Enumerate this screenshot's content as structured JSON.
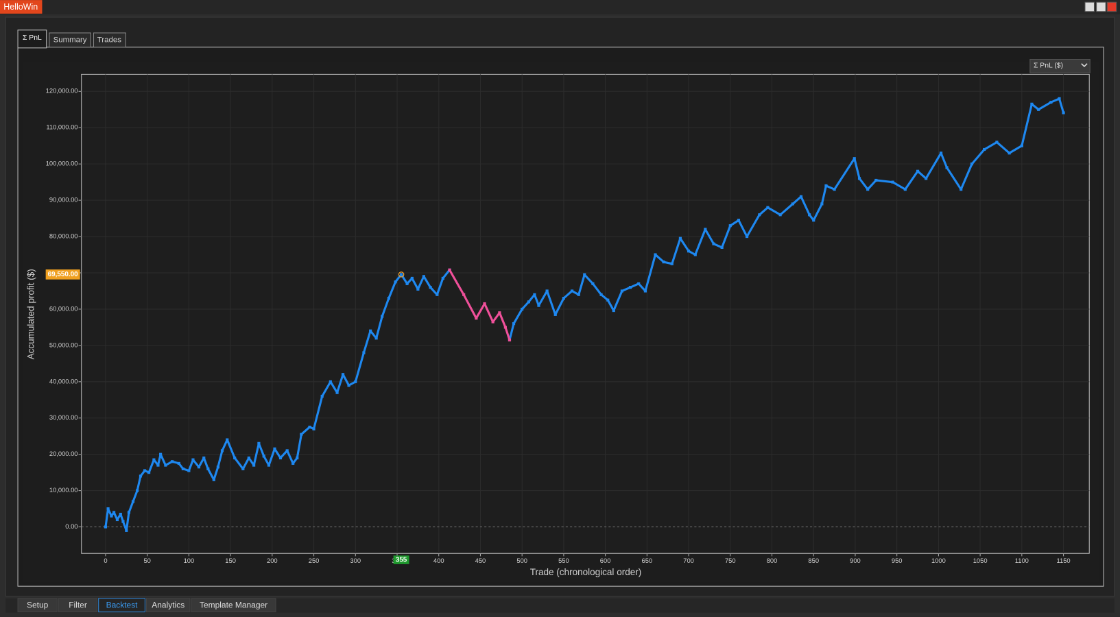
{
  "window": {
    "title": "HelloWin"
  },
  "tabs": [
    "Σ PnL",
    "Summary",
    "Trades"
  ],
  "dropdown": "Σ PnL ($)",
  "bottom_tabs": [
    "Setup",
    "Filter",
    "Backtest",
    "Analytics",
    "Template Manager"
  ],
  "active_bottom_tab": 2,
  "chart_data": {
    "type": "line",
    "xlabel": "Trade (chronological order)",
    "ylabel": "Accumulated profit ($)",
    "xlim": [
      -29,
      1181
    ],
    "ylim": [
      -7300,
      124700
    ],
    "grid": true,
    "xticks": [
      0,
      50,
      100,
      150,
      200,
      250,
      300,
      350,
      400,
      450,
      500,
      550,
      600,
      650,
      700,
      750,
      800,
      850,
      900,
      950,
      1000,
      1050,
      1100,
      1150
    ],
    "yticks": [
      {
        "value": 0,
        "label": "0.00"
      },
      {
        "value": 10000,
        "label": "10,000.00"
      },
      {
        "value": 20000,
        "label": "20,000.00"
      },
      {
        "value": 30000,
        "label": "30,000.00"
      },
      {
        "value": 40000,
        "label": "40,000.00"
      },
      {
        "value": 50000,
        "label": "50,000.00"
      },
      {
        "value": 60000,
        "label": "60,000.00"
      },
      {
        "value": 70000,
        "label": "70,000.00"
      },
      {
        "value": 80000,
        "label": "80,000.00"
      },
      {
        "value": 90000,
        "label": "90,000.00"
      },
      {
        "value": 100000,
        "label": "100,000.00"
      },
      {
        "value": 110000,
        "label": "110,000.00"
      },
      {
        "value": 120000,
        "label": "120,000.00"
      }
    ],
    "series": [
      {
        "color": "#1e88f0",
        "x": [
          0,
          3,
          7,
          10,
          14,
          18,
          21,
          25,
          28,
          33,
          38,
          42,
          47,
          52,
          58,
          63,
          66,
          72,
          80,
          88,
          93,
          100,
          105,
          112,
          118,
          123,
          130,
          135,
          140,
          146,
          155,
          165,
          172,
          178,
          184,
          190,
          196,
          203,
          210,
          218,
          225,
          230,
          235,
          245,
          250,
          260,
          270,
          278,
          285,
          292,
          300,
          310,
          318,
          325,
          332,
          340,
          348,
          355,
          362,
          368,
          375,
          382,
          390,
          398,
          405,
          413,
          430,
          445,
          455,
          465,
          473,
          480,
          485,
          490,
          500,
          508,
          515,
          520,
          530,
          540,
          550,
          560,
          568,
          575,
          585,
          595,
          603,
          610,
          620,
          630,
          640,
          648,
          660,
          670,
          680,
          690,
          700,
          708,
          720,
          730,
          740,
          750,
          760,
          770,
          785,
          795,
          810,
          825,
          835,
          845,
          850,
          860,
          865,
          875,
          899,
          905,
          915,
          925,
          945,
          960,
          975,
          985,
          1003,
          1010,
          1027,
          1040,
          1055,
          1070,
          1085,
          1100,
          1112,
          1120,
          1135,
          1145,
          1150
        ],
        "values": [
          0,
          5000,
          3000,
          4000,
          2000,
          3500,
          1500,
          -1000,
          4000,
          7000,
          10000,
          14000,
          15500,
          15000,
          18500,
          17000,
          20000,
          17000,
          18000,
          17500,
          16000,
          15500,
          18500,
          16500,
          19000,
          16000,
          13000,
          16500,
          21000,
          24000,
          19000,
          16000,
          19000,
          17000,
          23000,
          19500,
          17000,
          21500,
          19000,
          21000,
          17500,
          19000,
          25500,
          27500,
          27000,
          36000,
          40000,
          37000,
          42000,
          39000,
          40000,
          48000,
          54000,
          52000,
          58000,
          63000,
          67500,
          69550,
          67000,
          68500,
          65500,
          69000,
          66000,
          64000,
          68500,
          70800,
          null,
          null,
          null,
          null,
          null,
          null,
          51500,
          56000,
          60000,
          62000,
          64000,
          61000,
          65000,
          58500,
          63000,
          65000,
          64000,
          69500,
          67000,
          64000,
          62500,
          59600,
          65000,
          66000,
          67000,
          65000,
          75000,
          73000,
          72500,
          79500,
          76000,
          75000,
          82000,
          78000,
          77000,
          83000,
          84500,
          80000,
          86000,
          88000,
          86000,
          89000,
          91000,
          86000,
          84500,
          89000,
          94000,
          93000,
          101500,
          96000,
          93000,
          95500,
          95000,
          93000,
          98000,
          96000,
          103000,
          99000,
          93000,
          100000,
          104000,
          106000,
          103000,
          105000,
          116500,
          115000,
          117000,
          118000,
          114100
        ]
      },
      {
        "color": "#f0509a",
        "x": [
          413,
          430,
          445,
          455,
          465,
          473,
          480,
          485
        ],
        "values": [
          70800,
          64000,
          57500,
          61500,
          56500,
          59000,
          55000,
          51500
        ]
      }
    ],
    "crosshair": {
      "x": 355,
      "y": {
        "value": 69550,
        "label": "69,550.00"
      }
    }
  }
}
